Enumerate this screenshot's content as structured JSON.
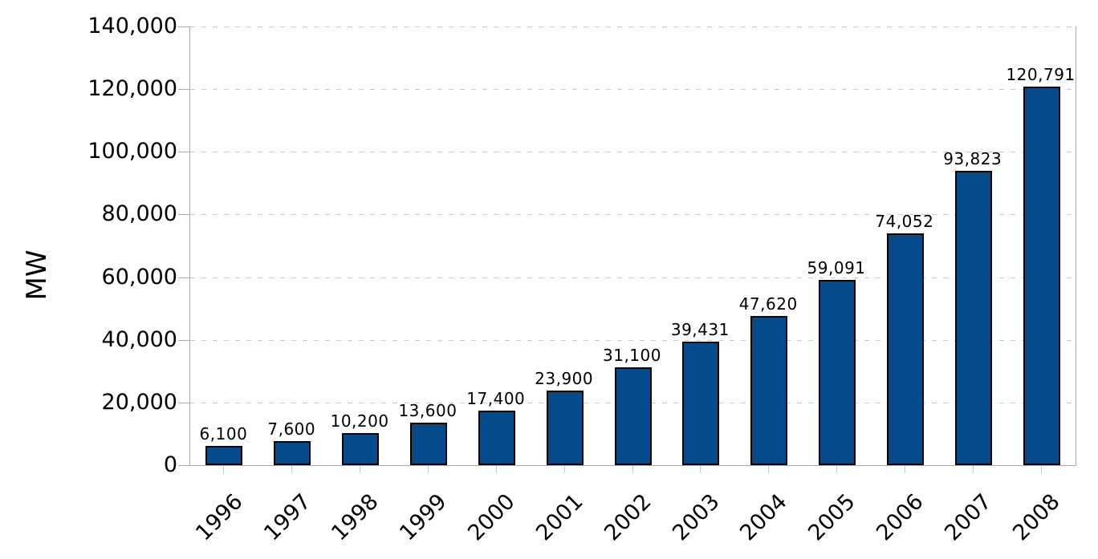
{
  "chart_data": {
    "type": "bar",
    "title": "",
    "xlabel": "",
    "ylabel": "MW",
    "categories": [
      "1996",
      "1997",
      "1998",
      "1999",
      "2000",
      "2001",
      "2002",
      "2003",
      "2004",
      "2005",
      "2006",
      "2007",
      "2008"
    ],
    "values": [
      6100,
      7600,
      10200,
      13600,
      17400,
      23900,
      31100,
      39431,
      47620,
      59091,
      74052,
      93823,
      120791
    ],
    "value_labels": [
      "6,100",
      "7,600",
      "10,200",
      "13,600",
      "17,400",
      "23,900",
      "31,100",
      "39,431",
      "47,620",
      "59,091",
      "74,052",
      "93,823",
      "120,791"
    ],
    "ylim": [
      0,
      140000
    ],
    "y_ticks": [
      {
        "value": 0,
        "label": "0"
      },
      {
        "value": 20000,
        "label": "20,000"
      },
      {
        "value": 40000,
        "label": "40,000"
      },
      {
        "value": 60000,
        "label": "60,000"
      },
      {
        "value": 80000,
        "label": "80,000"
      },
      {
        "value": 100000,
        "label": "100,000"
      },
      {
        "value": 120000,
        "label": "120,000"
      },
      {
        "value": 140000,
        "label": "140,000"
      }
    ],
    "grid": "horizontal-dashed",
    "legend": "none",
    "bar_color": "#054a8a",
    "bar_border_color": "#000000",
    "axis_color": "#a9a9a9",
    "gridline_color": "#c9c9c9",
    "text_color": "#000000"
  }
}
